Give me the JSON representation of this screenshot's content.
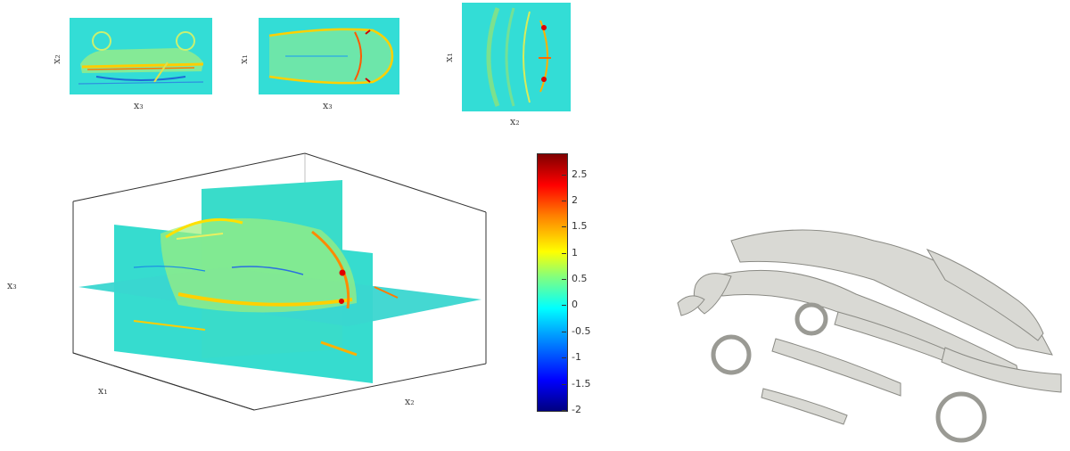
{
  "slices": {
    "side": {
      "xlabel": "x₃",
      "ylabel": "x₂"
    },
    "top": {
      "xlabel": "x₃",
      "ylabel": "x₁"
    },
    "front": {
      "xlabel": "x₂",
      "ylabel": "x₁"
    }
  },
  "volume": {
    "x1_label": "x₁",
    "x2_label": "x₂",
    "x3_label": "x₃"
  },
  "colorbar": {
    "min": -2,
    "max": 2.9,
    "ticks": [
      "2.5",
      "2",
      "1.5",
      "1",
      "0.5",
      "0",
      "-0.5",
      "-1",
      "-1.5",
      "-2"
    ],
    "tick_values": [
      2.5,
      2,
      1.5,
      1,
      0.5,
      0,
      -0.5,
      -1,
      -1.5,
      -2
    ],
    "colormap": "jet"
  },
  "colors": {
    "background": "#00ccff",
    "field": "#33e0d0",
    "isosurface": "#d9d9d4"
  }
}
